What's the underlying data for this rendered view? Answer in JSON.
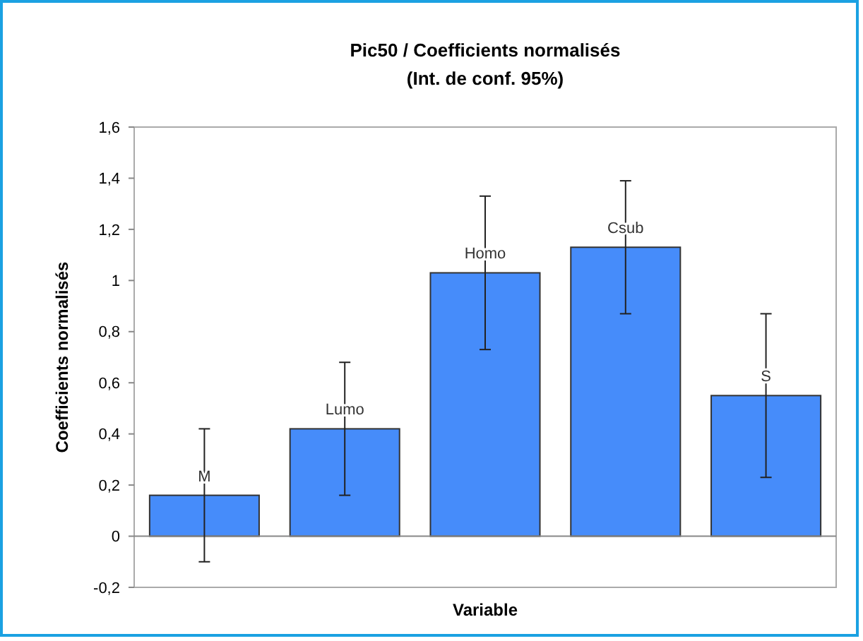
{
  "chart_data": {
    "type": "bar",
    "title": "Pic50 / Coefficients normalisés",
    "subtitle": "(Int. de conf. 95%)",
    "xlabel": "Variable",
    "ylabel": "Coefficients normalisés",
    "categories": [
      "M",
      "Lumo",
      "Homo",
      "Csub",
      "S"
    ],
    "values": [
      0.16,
      0.42,
      1.03,
      1.13,
      0.55
    ],
    "errors": [
      0.26,
      0.26,
      0.3,
      0.26,
      0.32
    ],
    "color": "#468cfa",
    "ylim": [
      -0.2,
      1.6
    ],
    "yticks": [
      {
        "value": -0.2,
        "label": "-0,2"
      },
      0,
      {
        "value": 0.2,
        "label": "0,2"
      },
      {
        "value": 0.4,
        "label": "0,4"
      },
      {
        "value": 0.6,
        "label": "0,6"
      },
      {
        "value": 0.8,
        "label": "0,8"
      },
      1,
      {
        "value": 1.2,
        "label": "1,2"
      },
      {
        "value": 1.4,
        "label": "1,4"
      },
      {
        "value": 1.6,
        "label": "1,6"
      }
    ],
    "tick_labels": "y"
  }
}
